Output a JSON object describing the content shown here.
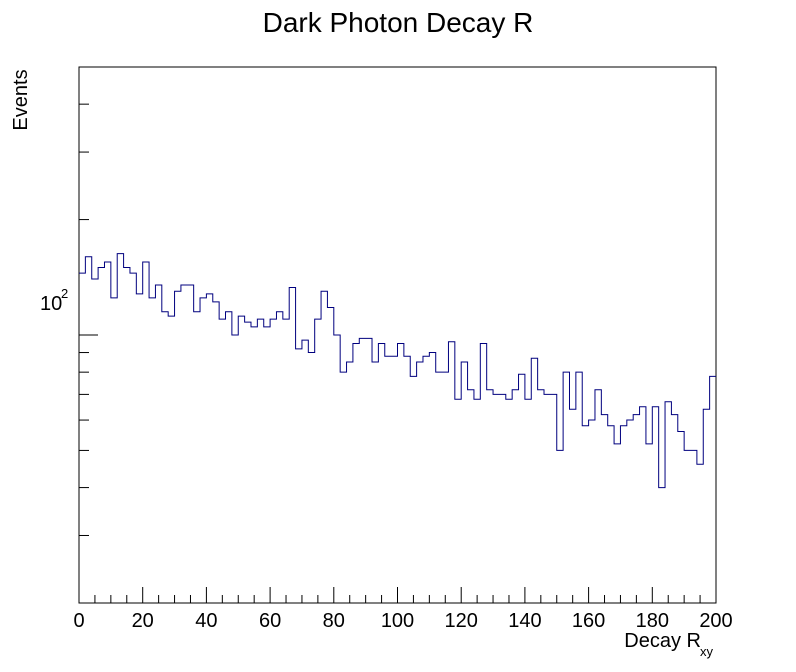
{
  "chart_data": {
    "type": "histogram",
    "title": "Dark Photon Decay R",
    "xlabel_main": "Decay R",
    "xlabel_sub": "xy",
    "ylabel": "Events",
    "y_scale": "log",
    "xlim": [
      0,
      200
    ],
    "ylim": [
      20,
      500
    ],
    "x_major_ticks": [
      0,
      20,
      40,
      60,
      80,
      100,
      120,
      140,
      160,
      180,
      200
    ],
    "x_minor_step": 5,
    "y_tick_label_base": "10",
    "y_tick_label_exp": "2",
    "y_tick_label_value": 100,
    "grid": false,
    "legend": "none",
    "line_color": "#00007f",
    "bin_width": 2,
    "bin_start": 0,
    "values": [
      145,
      160,
      140,
      150,
      155,
      125,
      163,
      150,
      145,
      128,
      155,
      125,
      135,
      115,
      112,
      130,
      135,
      135,
      115,
      125,
      128,
      122,
      110,
      115,
      100,
      112,
      108,
      105,
      110,
      105,
      110,
      115,
      110,
      133,
      92,
      97,
      90,
      110,
      130,
      118,
      100,
      80,
      85,
      95,
      98,
      98,
      85,
      95,
      88,
      88,
      95,
      88,
      78,
      85,
      88,
      90,
      80,
      80,
      96,
      68,
      85,
      72,
      68,
      95,
      72,
      70,
      70,
      68,
      72,
      79,
      68,
      87,
      72,
      70,
      70,
      50,
      80,
      64,
      80,
      58,
      60,
      72,
      62,
      58,
      52,
      58,
      60,
      62,
      65,
      52,
      65,
      40,
      67,
      62,
      56,
      50,
      50,
      46,
      64,
      78
    ]
  }
}
